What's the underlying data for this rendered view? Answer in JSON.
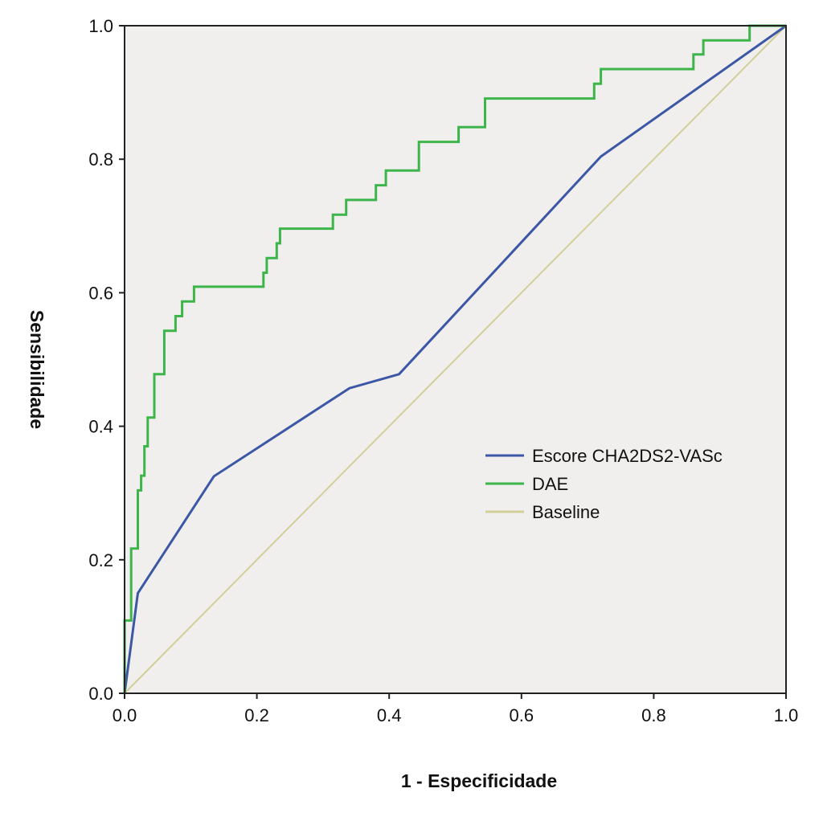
{
  "chart_data": {
    "type": "line",
    "title": "",
    "xlabel": "1 - Especificidade",
    "ylabel": "Sensibilidade",
    "xlim": [
      0,
      1
    ],
    "ylim": [
      0,
      1
    ],
    "xticks": [
      "0.0",
      "0.2",
      "0.4",
      "0.6",
      "0.8",
      "1.0"
    ],
    "yticks": [
      "0.0",
      "0.2",
      "0.4",
      "0.6",
      "0.8",
      "1.0"
    ],
    "grid": false,
    "legend_position": "center-right",
    "plot_background": "#f0efee",
    "series": [
      {
        "name": "Escore CHA2DS2-VASc",
        "color": "#3c57a5",
        "step": false,
        "x": [
          0,
          0.02,
          0.135,
          0.34,
          0.415,
          0.72,
          1.0
        ],
        "y": [
          0,
          0.15,
          0.325,
          0.457,
          0.478,
          0.804,
          1.0
        ]
      },
      {
        "name": "DAE",
        "color": "#3db54a",
        "step": true,
        "x": [
          0,
          0,
          0.01,
          0.01,
          0.02,
          0.02,
          0.025,
          0.025,
          0.03,
          0.03,
          0.035,
          0.035,
          0.045,
          0.045,
          0.06,
          0.06,
          0.062,
          0.062,
          0.077,
          0.077,
          0.087,
          0.087,
          0.105,
          0.105,
          0.21,
          0.21,
          0.215,
          0.215,
          0.23,
          0.23,
          0.235,
          0.235,
          0.315,
          0.315,
          0.335,
          0.335,
          0.38,
          0.38,
          0.395,
          0.395,
          0.445,
          0.445,
          0.505,
          0.505,
          0.545,
          0.545,
          0.71,
          0.71,
          0.72,
          0.72,
          0.86,
          0.86,
          0.875,
          0.875,
          0.945,
          0.945,
          1.0
        ],
        "y": [
          0,
          0.109,
          0.109,
          0.217,
          0.217,
          0.304,
          0.304,
          0.326,
          0.326,
          0.37,
          0.37,
          0.413,
          0.413,
          0.478,
          0.478,
          0.543,
          0.543,
          0.543,
          0.543,
          0.565,
          0.565,
          0.587,
          0.587,
          0.609,
          0.609,
          0.63,
          0.63,
          0.652,
          0.652,
          0.674,
          0.674,
          0.696,
          0.696,
          0.717,
          0.717,
          0.739,
          0.739,
          0.761,
          0.761,
          0.783,
          0.783,
          0.826,
          0.826,
          0.848,
          0.848,
          0.891,
          0.891,
          0.913,
          0.913,
          0.935,
          0.935,
          0.957,
          0.957,
          0.978,
          0.978,
          1.0,
          1.0
        ]
      },
      {
        "name": "Baseline",
        "color": "#d2cf9a",
        "step": false,
        "x": [
          0,
          1
        ],
        "y": [
          0,
          1
        ]
      }
    ]
  }
}
